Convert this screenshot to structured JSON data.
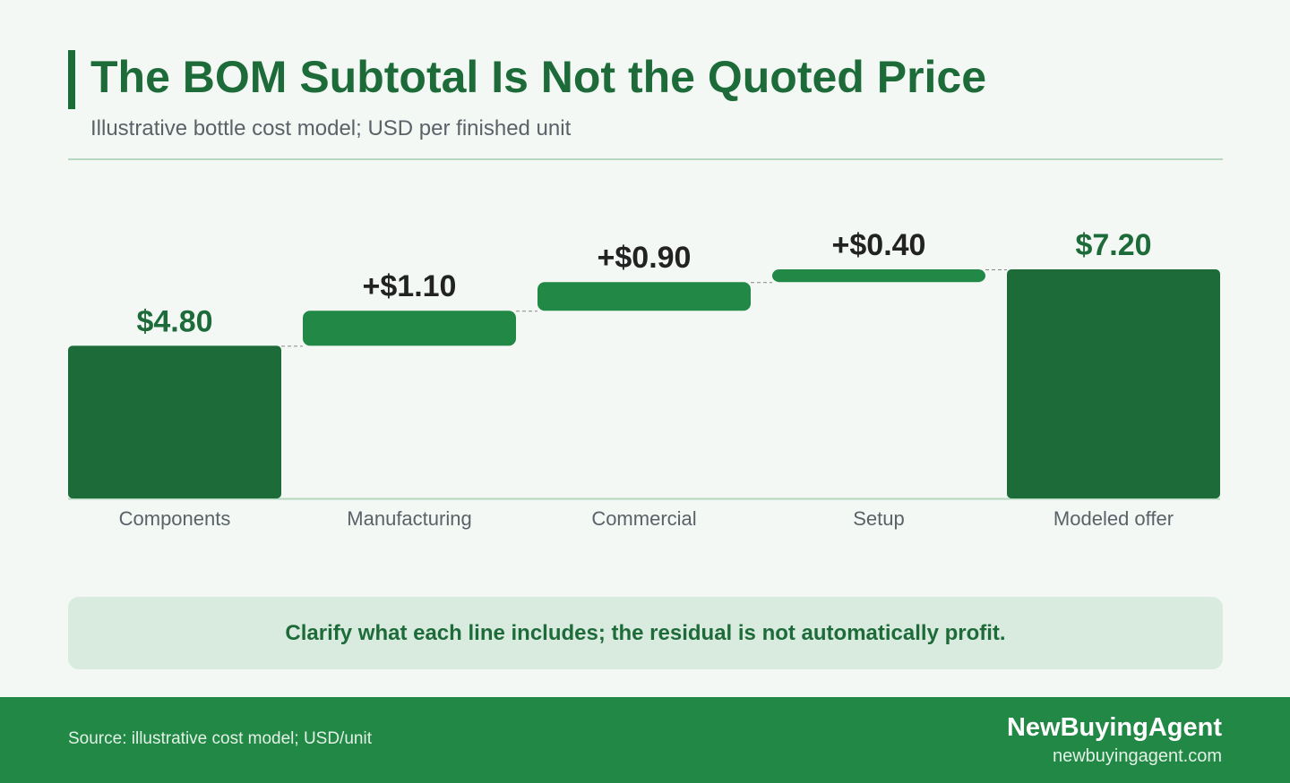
{
  "header": {
    "title": "The BOM Subtotal Is Not the Quoted Price",
    "subtitle": "Illustrative bottle cost model; USD per finished unit"
  },
  "callout": {
    "text": "Clarify what each line includes; the residual is not automatically profit."
  },
  "footer": {
    "source": "Source: illustrative cost model; USD/unit",
    "brand": "NewBuyingAgent",
    "url": "newbuyingagent.com"
  },
  "colors": {
    "total": "#1e6b3a",
    "increment": "#228845",
    "total_label": "#1e6b3a",
    "increment_label": "#222222",
    "category_label": "#5a6268",
    "baseline": "#b5d8bf",
    "connector": "#888888"
  },
  "chart_data": {
    "type": "waterfall",
    "title": "The BOM Subtotal Is Not the Quoted Price",
    "subtitle": "Illustrative bottle cost model; USD per finished unit",
    "categories": [
      "Components",
      "Manufacturing",
      "Commercial",
      "Setup",
      "Modeled offer"
    ],
    "values": [
      4.8,
      1.1,
      0.9,
      0.4,
      7.2
    ],
    "kinds": [
      "total",
      "increment",
      "increment",
      "increment",
      "total"
    ],
    "labels": [
      "$4.80",
      "+$1.10",
      "+$0.90",
      "+$0.40",
      "$7.20"
    ],
    "ylim": [
      0,
      7.2
    ],
    "grid": false,
    "connectors": true
  }
}
